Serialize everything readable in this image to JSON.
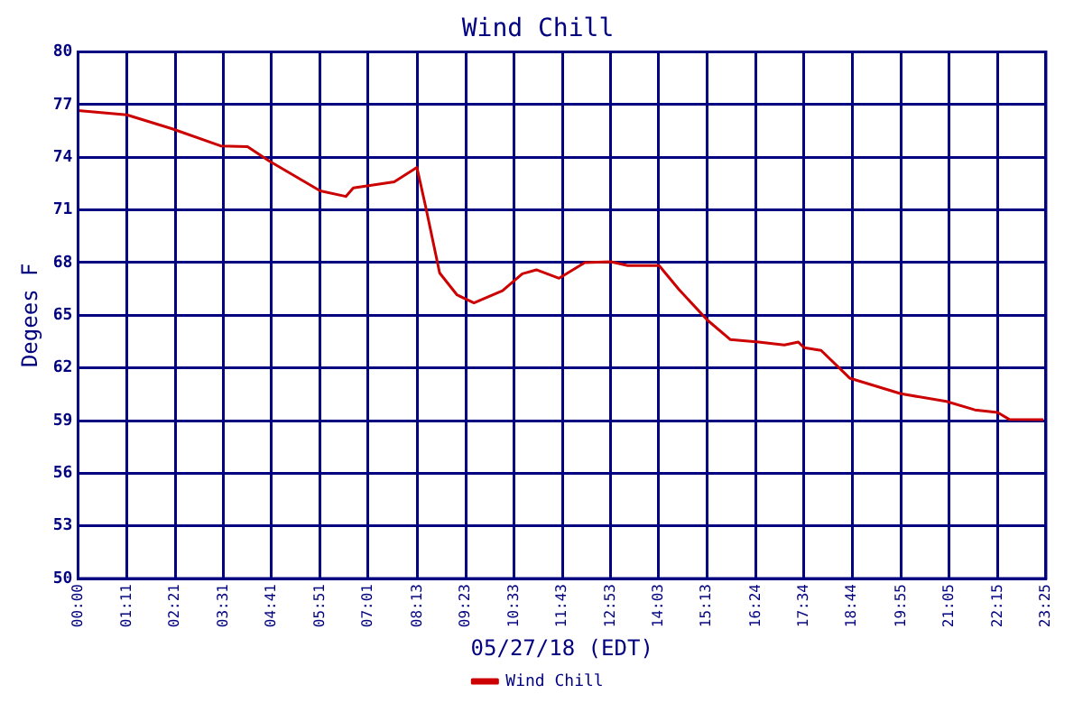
{
  "chart_data": {
    "type": "line",
    "title": "Wind Chill",
    "xlabel": "05/27/18 (EDT)",
    "ylabel": "Degees F",
    "x": [
      0,
      1.18,
      2.28,
      3.45,
      4.1,
      4.62,
      5.86,
      6.48,
      6.66,
      7.65,
      8.2,
      8.41,
      8.75,
      9.17,
      9.58,
      10.27,
      10.75,
      11.09,
      11.64,
      12.26,
      12.89,
      13.3,
      14.06,
      14.54,
      15.23,
      15.78,
      16.47,
      17.09,
      17.43,
      17.57,
      17.98,
      18.67,
      19.91,
      21.01,
      21.7,
      22.25,
      22.53,
      23.36
    ],
    "series": [
      {
        "name": "Wind Chill",
        "color": "#cc0000",
        "values": [
          76.66,
          76.42,
          75.62,
          74.65,
          74.6,
          73.8,
          72.09,
          71.77,
          72.25,
          72.6,
          73.42,
          71.2,
          67.41,
          66.16,
          65.7,
          66.4,
          67.36,
          67.59,
          67.11,
          68.0,
          68.05,
          67.83,
          67.83,
          66.47,
          64.72,
          63.62,
          63.47,
          63.31,
          63.47,
          63.15,
          63.0,
          61.42,
          60.53,
          60.09,
          59.61,
          59.46,
          59.07,
          59.05
        ]
      }
    ],
    "xlim": [
      0,
      23.42
    ],
    "xticks": [
      {
        "value": 0,
        "label": "00:00"
      },
      {
        "value": 1.183,
        "label": "01:11"
      },
      {
        "value": 2.35,
        "label": "02:21"
      },
      {
        "value": 3.517,
        "label": "03:31"
      },
      {
        "value": 4.683,
        "label": "04:41"
      },
      {
        "value": 5.85,
        "label": "05:51"
      },
      {
        "value": 7.017,
        "label": "07:01"
      },
      {
        "value": 8.217,
        "label": "08:13"
      },
      {
        "value": 9.383,
        "label": "09:23"
      },
      {
        "value": 10.55,
        "label": "10:33"
      },
      {
        "value": 11.717,
        "label": "11:43"
      },
      {
        "value": 12.883,
        "label": "12:53"
      },
      {
        "value": 14.05,
        "label": "14:03"
      },
      {
        "value": 15.217,
        "label": "15:13"
      },
      {
        "value": 16.4,
        "label": "16:24"
      },
      {
        "value": 17.567,
        "label": "17:34"
      },
      {
        "value": 18.733,
        "label": "18:44"
      },
      {
        "value": 19.917,
        "label": "19:55"
      },
      {
        "value": 21.083,
        "label": "21:05"
      },
      {
        "value": 22.25,
        "label": "22:15"
      },
      {
        "value": 23.417,
        "label": "23:25"
      }
    ],
    "ylim": [
      50,
      80
    ],
    "yticks": [
      50,
      53,
      56,
      59,
      62,
      65,
      68,
      71,
      74,
      77,
      80
    ],
    "grid": true,
    "legend": "bottom",
    "marker": "none",
    "line_style": "solid"
  }
}
